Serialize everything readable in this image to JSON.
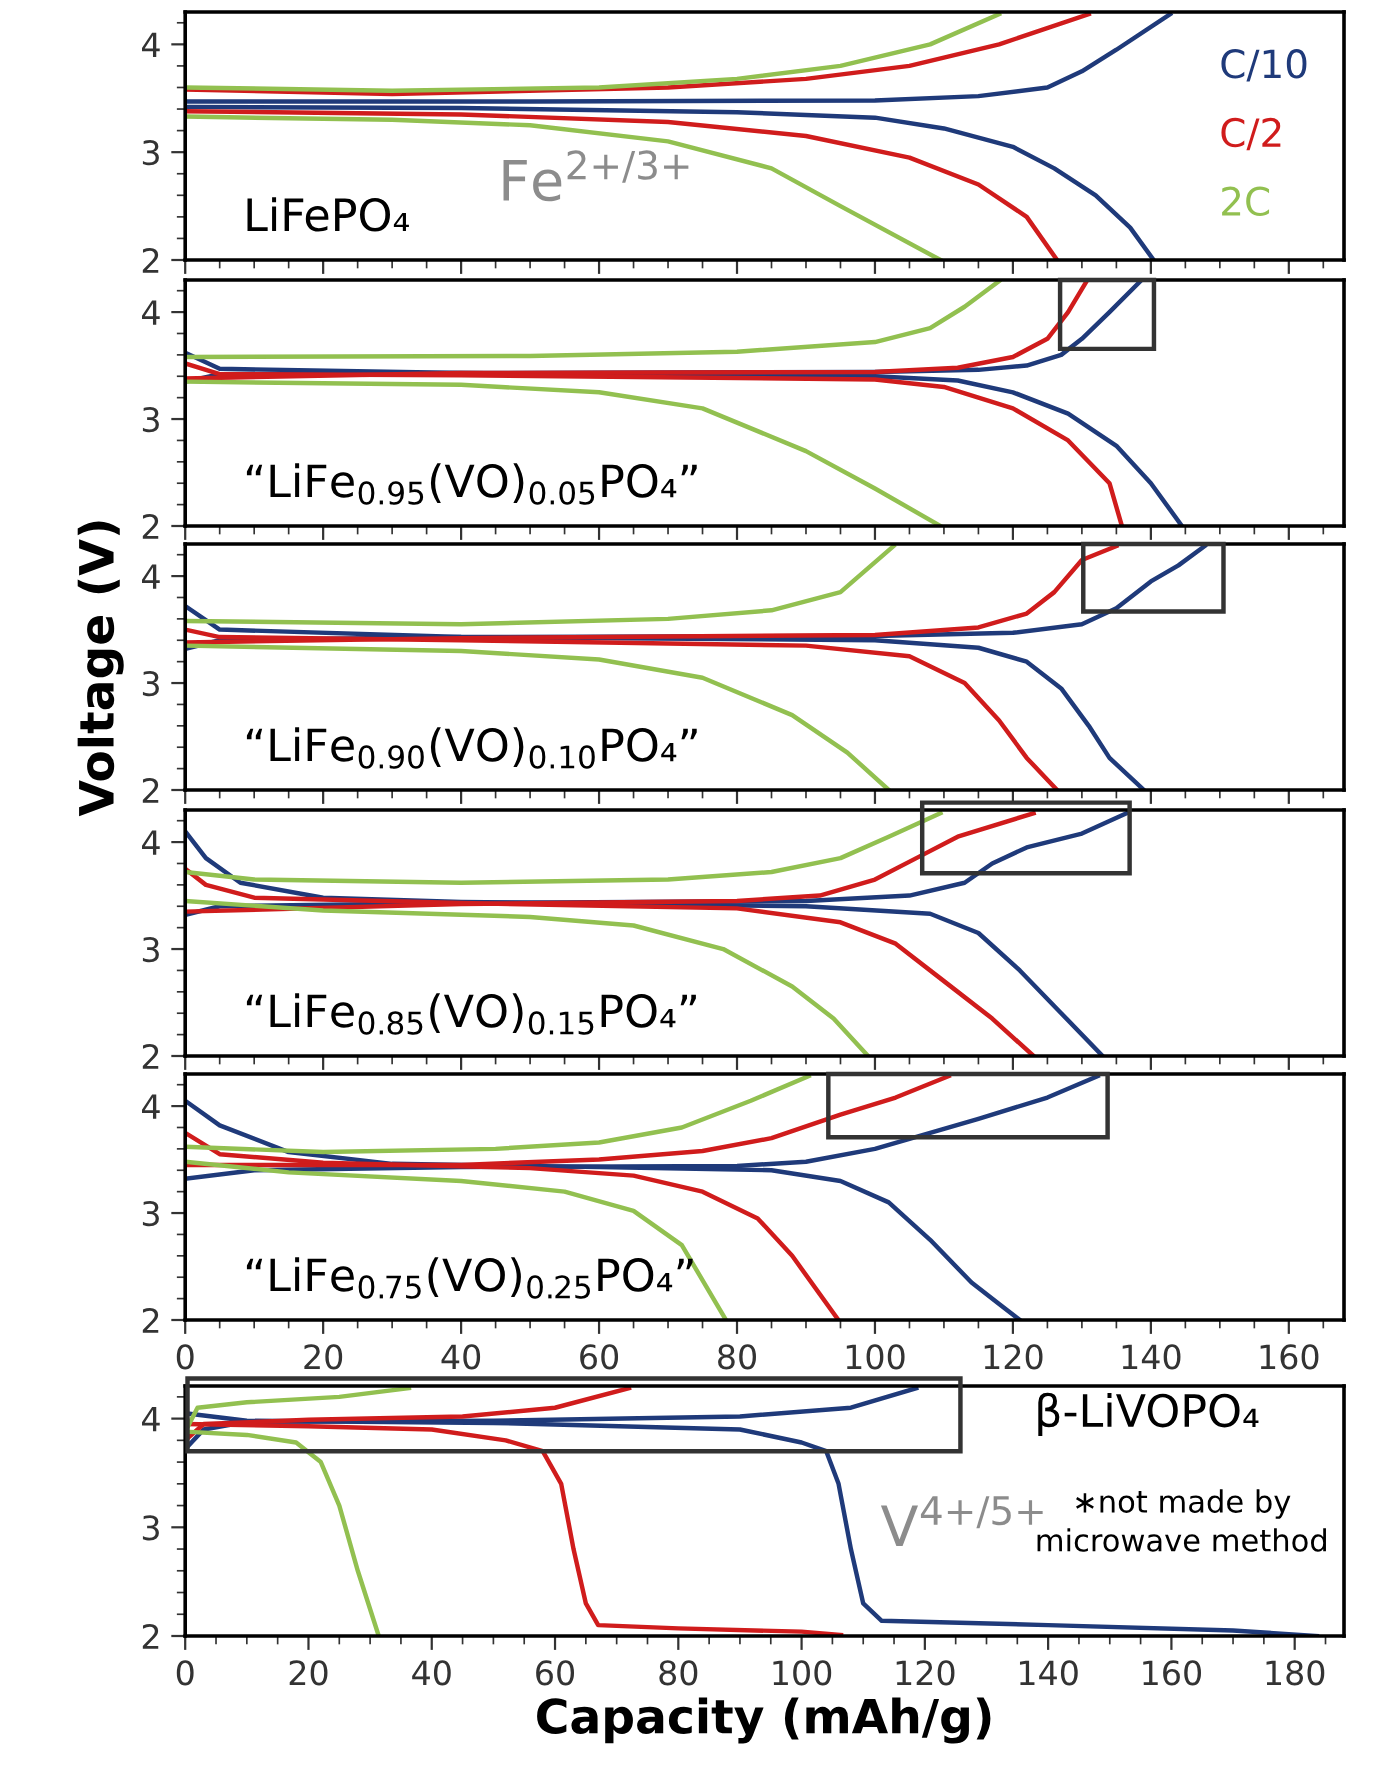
{
  "chart_data": [
    {
      "type": "line",
      "title": "LiFePO₄",
      "annotations": [
        "Fe$^{2+/3+}$"
      ],
      "xlim": [
        0,
        168
      ],
      "ylim": [
        2,
        4.3
      ],
      "xticks": [
        0,
        20,
        40,
        60,
        80,
        100,
        120,
        140,
        160
      ],
      "yticks": [
        2,
        3,
        4
      ],
      "tick_labels": "y",
      "legend": "right",
      "series": [
        {
          "name": "C/10",
          "color": "#1f3a7a",
          "x": [
            0,
            50,
            100,
            115,
            125,
            130,
            135,
            142.8
          ],
          "values": [
            3.47,
            3.47,
            3.48,
            3.52,
            3.6,
            3.75,
            3.95,
            4.28
          ]
        },
        {
          "color": "#1f3a7a",
          "x": [
            0,
            40,
            80,
            100,
            110,
            120,
            126,
            132,
            137,
            140.4
          ],
          "values": [
            3.42,
            3.41,
            3.37,
            3.32,
            3.22,
            3.05,
            2.85,
            2.6,
            2.3,
            2.0
          ]
        },
        {
          "name": "C/2",
          "color": "#d01c1c",
          "x": [
            0,
            30,
            70,
            90,
            105,
            118,
            131
          ],
          "values": [
            3.58,
            3.54,
            3.6,
            3.68,
            3.8,
            4.0,
            4.28
          ]
        },
        {
          "color": "#d01c1c",
          "x": [
            0,
            40,
            70,
            90,
            105,
            115,
            122,
            126.4
          ],
          "values": [
            3.38,
            3.35,
            3.28,
            3.15,
            2.95,
            2.7,
            2.4,
            2.0
          ]
        },
        {
          "name": "2C",
          "color": "#92c050",
          "x": [
            0,
            30,
            60,
            80,
            95,
            108,
            118
          ],
          "values": [
            3.6,
            3.57,
            3.6,
            3.68,
            3.8,
            4.0,
            4.28
          ]
        },
        {
          "color": "#92c050",
          "x": [
            0,
            30,
            50,
            70,
            85,
            95,
            109.5
          ],
          "values": [
            3.33,
            3.3,
            3.25,
            3.1,
            2.85,
            2.5,
            2.0
          ]
        }
      ]
    },
    {
      "type": "line",
      "title": "“LiFe$_{0.95}$(VO)$_{0.05}$PO₄”",
      "xlim": [
        0,
        168
      ],
      "ylim": [
        2,
        4.3
      ],
      "xticks": [
        0,
        20,
        40,
        60,
        80,
        100,
        120,
        140,
        160
      ],
      "yticks": [
        2,
        3,
        4
      ],
      "tick_labels": "y",
      "series": [
        {
          "color": "#1f3a7a",
          "x": [
            0,
            5,
            40,
            100,
            115,
            122,
            127,
            130,
            134,
            138.5
          ],
          "values": [
            3.35,
            3.42,
            3.43,
            3.44,
            3.46,
            3.5,
            3.6,
            3.75,
            4.0,
            4.29
          ]
        },
        {
          "color": "#1f3a7a",
          "x": [
            0,
            5,
            40,
            100,
            112,
            120,
            128,
            135,
            140,
            144.5
          ],
          "values": [
            3.62,
            3.47,
            3.43,
            3.4,
            3.36,
            3.25,
            3.05,
            2.75,
            2.4,
            2.0
          ]
        },
        {
          "color": "#d01c1c",
          "x": [
            0,
            40,
            100,
            112,
            120,
            125,
            128,
            130.7
          ],
          "values": [
            3.38,
            3.43,
            3.44,
            3.48,
            3.58,
            3.75,
            4.0,
            4.29
          ]
        },
        {
          "color": "#d01c1c",
          "x": [
            0,
            5,
            40,
            100,
            110,
            120,
            128,
            134,
            135.8
          ],
          "values": [
            3.52,
            3.42,
            3.41,
            3.37,
            3.3,
            3.1,
            2.8,
            2.4,
            2.0
          ]
        },
        {
          "color": "#92c050",
          "x": [
            0,
            50,
            80,
            100,
            108,
            113,
            118
          ],
          "values": [
            3.58,
            3.59,
            3.63,
            3.72,
            3.85,
            4.05,
            4.29
          ]
        },
        {
          "color": "#92c050",
          "x": [
            0,
            40,
            60,
            75,
            90,
            100,
            109.5
          ],
          "values": [
            3.35,
            3.32,
            3.25,
            3.1,
            2.7,
            2.35,
            2.0
          ]
        }
      ]
    },
    {
      "type": "line",
      "title": "“LiFe$_{0.90}$(VO)$_{0.10}$PO₄”",
      "ylabel": "Voltage (V)",
      "xlim": [
        0,
        168
      ],
      "ylim": [
        2,
        4.3
      ],
      "xticks": [
        0,
        20,
        40,
        60,
        80,
        100,
        120,
        140,
        160
      ],
      "yticks": [
        2,
        3,
        4
      ],
      "tick_labels": "y",
      "series": [
        {
          "color": "#1f3a7a",
          "x": [
            0,
            5,
            40,
            100,
            120,
            130,
            135,
            140,
            144,
            147.8
          ],
          "values": [
            3.32,
            3.4,
            3.43,
            3.44,
            3.47,
            3.55,
            3.7,
            3.95,
            4.1,
            4.28
          ]
        },
        {
          "color": "#1f3a7a",
          "x": [
            0,
            5,
            40,
            100,
            115,
            122,
            127,
            131,
            134,
            139
          ],
          "values": [
            3.72,
            3.5,
            3.43,
            3.4,
            3.33,
            3.2,
            2.95,
            2.6,
            2.3,
            2.0
          ]
        },
        {
          "color": "#d01c1c",
          "x": [
            0,
            40,
            100,
            115,
            122,
            126,
            130,
            135
          ],
          "values": [
            3.38,
            3.42,
            3.45,
            3.52,
            3.65,
            3.85,
            4.15,
            4.28
          ]
        },
        {
          "color": "#d01c1c",
          "x": [
            0,
            5,
            40,
            90,
            105,
            113,
            118,
            122,
            126.4
          ],
          "values": [
            3.5,
            3.43,
            3.4,
            3.35,
            3.25,
            3.0,
            2.65,
            2.3,
            2.0
          ]
        },
        {
          "color": "#92c050",
          "x": [
            0,
            40,
            70,
            85,
            95,
            102.7
          ],
          "values": [
            3.58,
            3.55,
            3.6,
            3.68,
            3.85,
            4.28
          ]
        },
        {
          "color": "#92c050",
          "x": [
            0,
            40,
            60,
            75,
            88,
            96,
            102
          ],
          "values": [
            3.35,
            3.3,
            3.22,
            3.05,
            2.7,
            2.35,
            2.0
          ]
        }
      ]
    },
    {
      "type": "line",
      "title": "“LiFe$_{0.85}$(VO)$_{0.15}$PO₄”",
      "xlim": [
        0,
        168
      ],
      "ylim": [
        2,
        4.3
      ],
      "xticks": [
        0,
        20,
        40,
        60,
        80,
        100,
        120,
        140,
        160
      ],
      "yticks": [
        2,
        3,
        4
      ],
      "tick_labels": "y",
      "series": [
        {
          "color": "#1f3a7a",
          "x": [
            0,
            5,
            40,
            90,
            105,
            113,
            117,
            122,
            130,
            136.5
          ],
          "values": [
            3.32,
            3.4,
            3.43,
            3.45,
            3.5,
            3.62,
            3.8,
            3.95,
            4.08,
            4.27
          ]
        },
        {
          "color": "#1f3a7a",
          "x": [
            0,
            3,
            8,
            20,
            40,
            90,
            108,
            115,
            121,
            127,
            133
          ],
          "values": [
            4.1,
            3.85,
            3.62,
            3.48,
            3.44,
            3.4,
            3.33,
            3.15,
            2.8,
            2.4,
            2.0
          ]
        },
        {
          "color": "#d01c1c",
          "x": [
            0,
            40,
            80,
            92,
            100,
            106,
            112,
            123
          ],
          "values": [
            3.35,
            3.42,
            3.45,
            3.5,
            3.65,
            3.85,
            4.05,
            4.27
          ]
        },
        {
          "color": "#d01c1c",
          "x": [
            0,
            3,
            10,
            40,
            80,
            95,
            103,
            110,
            117,
            123
          ],
          "values": [
            3.75,
            3.6,
            3.48,
            3.43,
            3.38,
            3.25,
            3.05,
            2.7,
            2.35,
            2.0
          ]
        },
        {
          "color": "#92c050",
          "x": [
            0,
            10,
            40,
            70,
            85,
            95,
            102,
            109.5
          ],
          "values": [
            3.72,
            3.65,
            3.62,
            3.65,
            3.72,
            3.85,
            4.05,
            4.27
          ]
        },
        {
          "color": "#92c050",
          "x": [
            0,
            20,
            50,
            65,
            78,
            88,
            94,
            99
          ],
          "values": [
            3.45,
            3.36,
            3.3,
            3.22,
            3.0,
            2.65,
            2.35,
            2.0
          ]
        }
      ]
    },
    {
      "type": "line",
      "title": "“LiFe$_{0.75}$(VO)$_{0.25}$PO₄”",
      "xlim": [
        0,
        168
      ],
      "ylim": [
        2,
        4.3
      ],
      "xticks": [
        0,
        20,
        40,
        60,
        80,
        100,
        120,
        140,
        160
      ],
      "yticks": [
        2,
        3,
        4
      ],
      "series": [
        {
          "color": "#1f3a7a",
          "x": [
            0,
            10,
            40,
            80,
            90,
            100,
            108,
            115,
            125,
            132.3
          ],
          "values": [
            3.32,
            3.4,
            3.43,
            3.44,
            3.48,
            3.6,
            3.75,
            3.88,
            4.08,
            4.28
          ]
        },
        {
          "color": "#1f3a7a",
          "x": [
            0,
            5,
            15,
            30,
            60,
            85,
            95,
            102,
            108,
            114,
            118,
            121
          ],
          "values": [
            4.05,
            3.82,
            3.57,
            3.46,
            3.43,
            3.4,
            3.3,
            3.1,
            2.75,
            2.35,
            2.15,
            2.0
          ]
        },
        {
          "color": "#d01c1c",
          "x": [
            0,
            40,
            60,
            75,
            85,
            95,
            103,
            110.7
          ],
          "values": [
            3.45,
            3.45,
            3.5,
            3.58,
            3.7,
            3.92,
            4.08,
            4.28
          ]
        },
        {
          "color": "#d01c1c",
          "x": [
            0,
            5,
            20,
            50,
            65,
            75,
            83,
            88,
            94.7
          ],
          "values": [
            3.75,
            3.55,
            3.47,
            3.42,
            3.35,
            3.2,
            2.95,
            2.6,
            2.0
          ]
        },
        {
          "color": "#92c050",
          "x": [
            0,
            20,
            45,
            60,
            72,
            82,
            90.4
          ],
          "values": [
            3.62,
            3.57,
            3.6,
            3.66,
            3.8,
            4.05,
            4.28
          ]
        },
        {
          "color": "#92c050",
          "x": [
            0,
            15,
            40,
            55,
            65,
            72,
            78.4
          ],
          "values": [
            3.48,
            3.38,
            3.3,
            3.2,
            3.02,
            2.7,
            2.0
          ]
        }
      ]
    },
    {
      "type": "line",
      "title": "β-LiVOPO₄",
      "xlabel": "Capacity (mAh/g)",
      "annotations": [
        "V$^{4+/5+}$",
        "∗not made by\nmicrowave method"
      ],
      "xlim": [
        0,
        188
      ],
      "ylim": [
        2,
        4.3
      ],
      "xticks": [
        0,
        20,
        40,
        60,
        80,
        100,
        120,
        140,
        160,
        180
      ],
      "yticks": [
        2,
        3,
        4
      ],
      "series": [
        {
          "color": "#1f3a7a",
          "x": [
            0,
            3,
            10,
            50,
            90,
            108,
            118.6
          ],
          "values": [
            3.72,
            3.9,
            3.97,
            3.98,
            4.02,
            4.1,
            4.28
          ]
        },
        {
          "color": "#1f3a7a",
          "x": [
            0,
            10,
            50,
            90,
            100,
            104,
            106,
            108,
            110,
            113,
            140,
            170,
            183.6
          ],
          "values": [
            4.05,
            3.98,
            3.96,
            3.9,
            3.78,
            3.7,
            3.4,
            2.8,
            2.3,
            2.14,
            2.1,
            2.05,
            2.0
          ]
        },
        {
          "color": "#d01c1c",
          "x": [
            0,
            3,
            20,
            45,
            60,
            72
          ],
          "values": [
            3.8,
            3.95,
            3.99,
            4.02,
            4.1,
            4.28
          ]
        },
        {
          "color": "#d01c1c",
          "x": [
            0,
            20,
            40,
            52,
            58,
            61,
            63,
            65,
            67,
            80,
            100,
            106.4
          ],
          "values": [
            3.95,
            3.93,
            3.9,
            3.8,
            3.7,
            3.4,
            2.8,
            2.3,
            2.1,
            2.07,
            2.04,
            2.01
          ]
        },
        {
          "color": "#92c050",
          "x": [
            0,
            2,
            10,
            25,
            36.3
          ],
          "values": [
            3.88,
            4.1,
            4.15,
            4.2,
            4.28
          ]
        },
        {
          "color": "#92c050",
          "x": [
            0,
            10,
            18,
            22,
            25,
            28,
            31.4
          ],
          "values": [
            3.88,
            3.85,
            3.78,
            3.6,
            3.2,
            2.6,
            2.0
          ]
        }
      ]
    }
  ]
}
